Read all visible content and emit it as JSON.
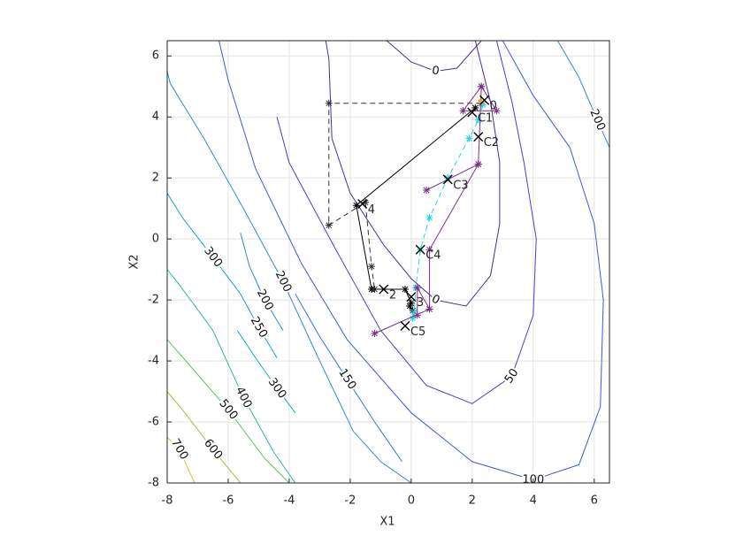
{
  "chart_data": {
    "type": "contour",
    "xlabel": "X1",
    "ylabel": "X2",
    "xlim": [
      -8,
      6.5
    ],
    "ylim": [
      -8,
      6.5
    ],
    "xticks": [
      -8,
      -6,
      -4,
      -2,
      0,
      2,
      4,
      6
    ],
    "yticks": [
      -8,
      -6,
      -4,
      -2,
      0,
      2,
      4,
      6
    ],
    "grid": true,
    "contours": [
      {
        "level": 0,
        "color": "#4b2d9c",
        "x": [
          -2.8,
          -2.7,
          -2.6,
          -2,
          -0.9,
          0,
          0.8,
          1.8,
          2.6,
          2.9,
          2.9,
          2.6,
          2.1
        ],
        "y": [
          6.5,
          5.9,
          3.3,
          1.5,
          -0.2,
          -1.3,
          -2,
          -2.2,
          -1.2,
          0.5,
          2.5,
          4.5,
          6.5
        ]
      },
      {
        "level": 0,
        "color": "#4b2d9c",
        "x": [
          -0.8,
          0,
          0.8,
          1.5,
          2.3
        ],
        "y": [
          6.5,
          5.8,
          5.5,
          5.6,
          6.5
        ]
      },
      {
        "level": 50,
        "color": "#4740d8",
        "x": [
          -4.4,
          -4,
          -2.5,
          -1,
          0.5,
          2,
          3.3,
          4,
          4.1,
          3.7,
          3.3,
          2.8
        ],
        "y": [
          4,
          2.5,
          -0.3,
          -3,
          -4.8,
          -5.4,
          -4.5,
          -2.5,
          0,
          2.5,
          4.5,
          6.5
        ]
      },
      {
        "level": 100,
        "color": "#3f55e8",
        "x": [
          -6.3,
          -6,
          -5.1,
          -3.6,
          -2.1,
          0,
          2,
          4,
          5.5,
          6.2,
          6.3,
          6,
          5.2,
          4,
          3
        ],
        "y": [
          6.5,
          5.2,
          2.3,
          -0.8,
          -3.3,
          -5.7,
          -7.3,
          -7.9,
          -7.4,
          -5.5,
          -2,
          0.5,
          3,
          4.7,
          6.5
        ]
      },
      {
        "level": 150,
        "color": "#3171f0",
        "x": [
          -3.8,
          -3,
          -2.1,
          -1.2,
          -0.3
        ],
        "y": [
          -1.8,
          -3.2,
          -4.6,
          -6,
          -7.3
        ]
      },
      {
        "level": 200,
        "color": "#2e87e8",
        "x": [
          -8,
          -7.9,
          -6.8,
          -5.5,
          -4.2,
          -3,
          -1.9,
          -1,
          0
        ],
        "y": [
          5.5,
          5.1,
          3.3,
          1,
          -1.4,
          -4,
          -6.3,
          -7.3,
          -8
        ]
      },
      {
        "level": 200,
        "color": "#2e87e8",
        "x": [
          4.8,
          5.5,
          6.1,
          6.5
        ],
        "y": [
          6.5,
          5.3,
          3.9,
          3
        ]
      },
      {
        "level": 200,
        "color": "#2e87e8",
        "x": [
          -5.6,
          -5.3,
          -4.8,
          -4.2
        ],
        "y": [
          0.2,
          -0.9,
          -2,
          -3
        ]
      },
      {
        "level": 250,
        "color": "#1f9ad8",
        "x": [
          -5.6,
          -5,
          -4.4
        ],
        "y": [
          -1.8,
          -2.9,
          -3.9
        ]
      },
      {
        "level": 300,
        "color": "#14a8d0",
        "x": [
          -5.7,
          -5.1,
          -4.4,
          -3.8
        ],
        "y": [
          -3,
          -3.9,
          -4.9,
          -5.7
        ]
      },
      {
        "level": 300,
        "color": "#14a8d0",
        "x": [
          -8,
          -7.5,
          -6.5,
          -5.6
        ],
        "y": [
          1.5,
          0.7,
          -0.6,
          -1.8
        ]
      },
      {
        "level": 400,
        "color": "#28b8a8",
        "x": [
          -8,
          -7.6,
          -6.5,
          -5.5,
          -4.5,
          -3.8
        ],
        "y": [
          -1,
          -1.5,
          -3,
          -5.2,
          -7,
          -8
        ]
      },
      {
        "level": 500,
        "color": "#5cc36c",
        "x": [
          -8,
          -7.3,
          -6,
          -4.8,
          -4
        ],
        "y": [
          -3.3,
          -4.1,
          -5.6,
          -7.2,
          -8
        ]
      },
      {
        "level": 600,
        "color": "#a6c23c",
        "x": [
          -8,
          -7.5,
          -6.5,
          -5.6
        ],
        "y": [
          -5,
          -5.6,
          -6.9,
          -8
        ]
      },
      {
        "level": 700,
        "color": "#e8c028",
        "x": [
          -8,
          -7.6,
          -7.1
        ],
        "y": [
          -6.5,
          -6.9,
          -8
        ]
      }
    ],
    "paths": [
      {
        "color": "#333333",
        "dashed": true,
        "x": [
          2.3,
          -2.7,
          -2.7,
          -1.5,
          -1.3,
          -1.2
        ],
        "y": [
          4.45,
          4.45,
          0.45,
          1.2,
          -0.9,
          -1.65
        ]
      },
      {
        "color": "#000000",
        "dashed": false,
        "x": [
          2.1,
          -1.8,
          -1.3,
          -0.2,
          0,
          -0.05,
          0.05
        ],
        "y": [
          4.3,
          1.1,
          -1.65,
          -1.65,
          -2.1,
          -2.2,
          -2.35
        ]
      },
      {
        "color": "#22d3e6",
        "dashed": true,
        "x": [
          2.35,
          2.2,
          1.9,
          1.2,
          0.6,
          0.3,
          0.15,
          0.1,
          0.05
        ],
        "y": [
          4.4,
          3.9,
          3.3,
          2,
          0.7,
          -0.35,
          -1.6,
          -2.4,
          -2.6
        ]
      },
      {
        "color": "#7e2f8e",
        "dashed": false,
        "x": [
          2.3,
          1.7,
          2.8,
          2.3,
          2.2,
          0.5,
          2.2,
          0.6,
          0.6,
          -1.2,
          0.6,
          0.2,
          0.2
        ],
        "y": [
          5,
          4.2,
          4.2,
          5,
          2.45,
          1.6,
          2.45,
          -0.35,
          -2.3,
          -3.1,
          -2.3,
          -1.6,
          -2.5
        ]
      },
      {
        "color": "#edb120",
        "dashed": false,
        "x": [
          2.3
        ],
        "y": [
          4.5
        ]
      }
    ],
    "annotations": [
      {
        "label": "0",
        "x": 2.4,
        "y": 4.55
      },
      {
        "label": "C1",
        "x": 2.0,
        "y": 4.15
      },
      {
        "label": "C2",
        "x": 2.2,
        "y": 3.35
      },
      {
        "label": "C3",
        "x": 1.2,
        "y": 1.95
      },
      {
        "label": "C4",
        "x": 0.3,
        "y": -0.35
      },
      {
        "label": "C5",
        "x": -0.2,
        "y": -2.85
      },
      {
        "label": "4",
        "x": -1.6,
        "y": 1.15
      },
      {
        "label": "2",
        "x": -0.9,
        "y": -1.65
      },
      {
        "label": "3",
        "x": 0.0,
        "y": -1.9
      }
    ]
  }
}
